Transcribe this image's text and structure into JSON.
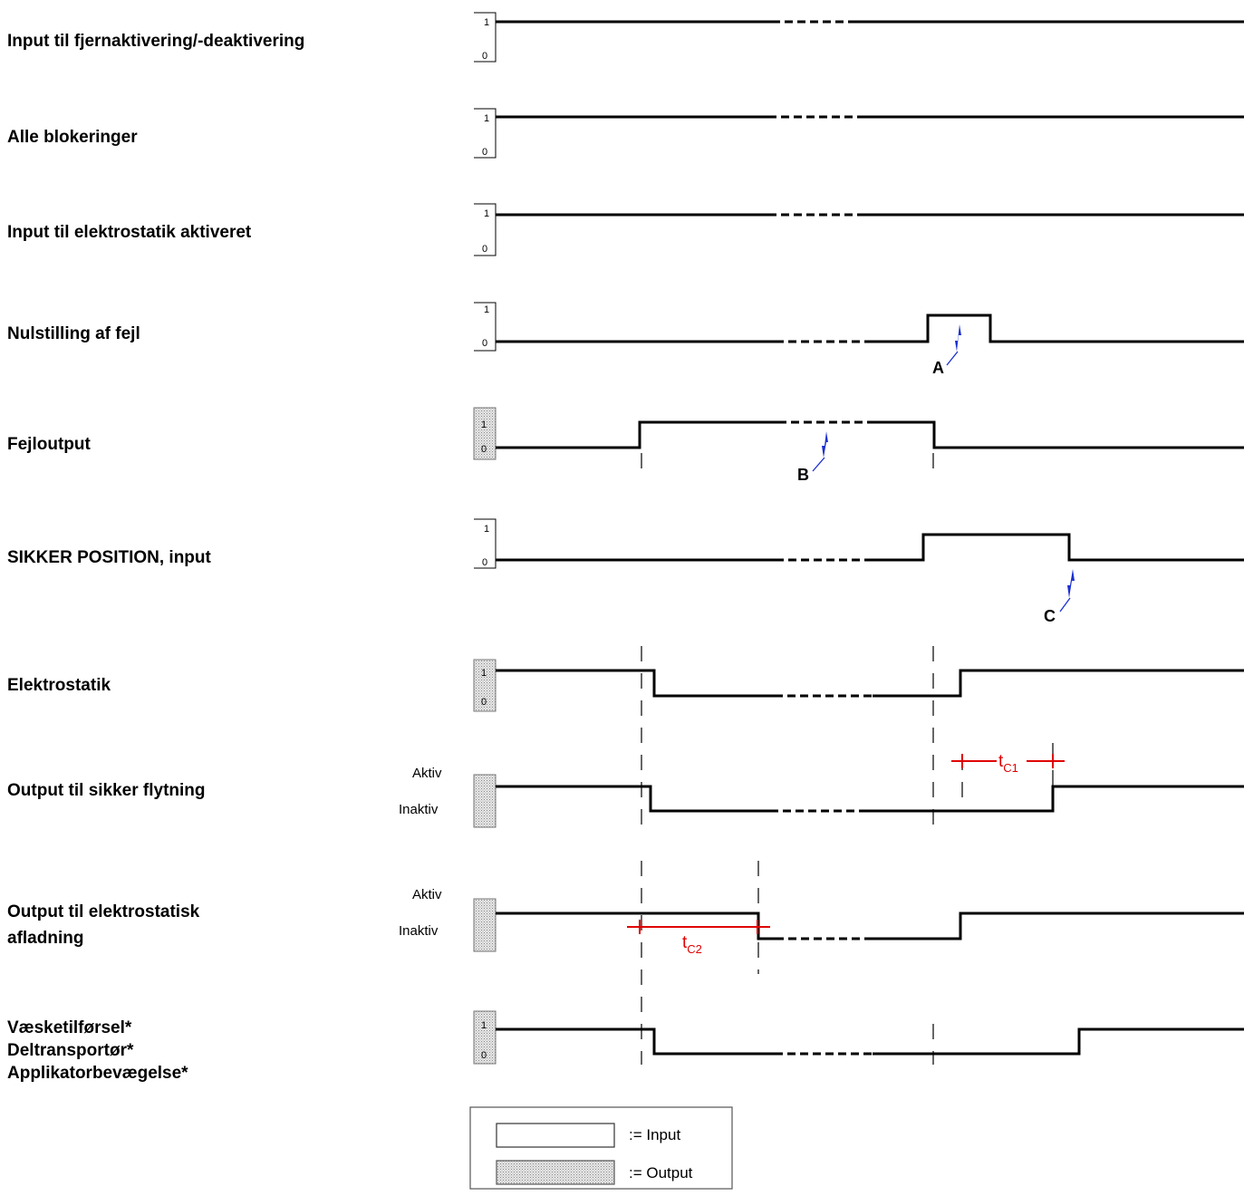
{
  "signals": [
    {
      "id": "remote",
      "label_lines": [
        "Input til fjernaktivering/-deaktivering"
      ],
      "kind": "input",
      "high_label": "1",
      "low_label": "0"
    },
    {
      "id": "interlocks",
      "label_lines": [
        "Alle blokeringer"
      ],
      "kind": "input",
      "high_label": "1",
      "low_label": "0"
    },
    {
      "id": "es-enable",
      "label_lines": [
        "Input til elektrostatik aktiveret"
      ],
      "kind": "input",
      "high_label": "1",
      "low_label": "0"
    },
    {
      "id": "fault-reset",
      "label_lines": [
        "Nulstilling af fejl"
      ],
      "kind": "input",
      "high_label": "1",
      "low_label": "0"
    },
    {
      "id": "fault-output",
      "label_lines": [
        "Fejloutput"
      ],
      "kind": "output",
      "high_label": "1",
      "low_label": "0"
    },
    {
      "id": "safe-position",
      "label_lines": [
        "SIKKER POSITION, input"
      ],
      "kind": "input",
      "high_label": "1",
      "low_label": "0"
    },
    {
      "id": "electrostatics",
      "label_lines": [
        "Elektrostatik"
      ],
      "kind": "output",
      "high_label": "1",
      "low_label": "0"
    },
    {
      "id": "safe-move",
      "label_lines": [
        "Output til sikker flytning"
      ],
      "kind": "output",
      "high_label": "Aktiv",
      "low_label": "Inaktiv"
    },
    {
      "id": "es-discharge",
      "label_lines": [
        "Output til  elektrostatisk",
        "afladning"
      ],
      "kind": "output",
      "high_label": "Aktiv",
      "low_label": "Inaktiv"
    },
    {
      "id": "fluid",
      "label_lines": [
        "Væsketilførsel*",
        "Deltransportør*",
        "Applikatorbevægelse*"
      ],
      "kind": "output",
      "high_label": "1",
      "low_label": "0"
    }
  ],
  "markers": {
    "a": "A",
    "b": "B",
    "c": "C"
  },
  "timings": {
    "tc1": {
      "main": "t",
      "sub": "C1"
    },
    "tc2": {
      "main": "t",
      "sub": "C2"
    }
  },
  "legend": {
    "input": ":= Input",
    "output": ":= Output"
  },
  "colors": {
    "trace": "#000000",
    "timing": "#e00000",
    "callout": "#1a2fd0"
  }
}
